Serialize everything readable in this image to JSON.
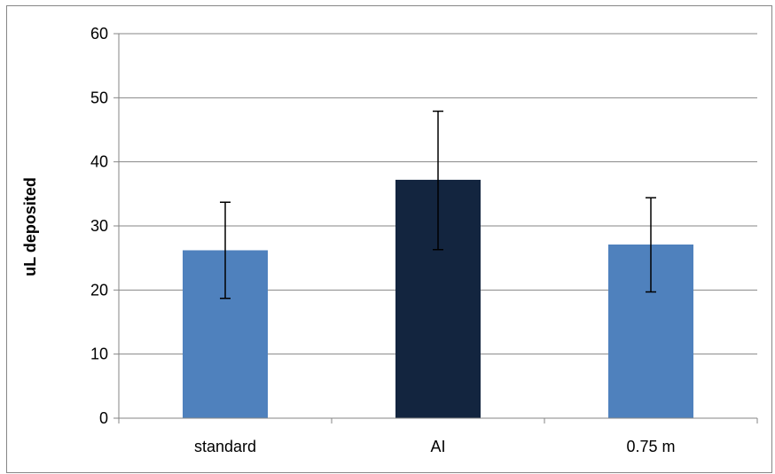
{
  "chart_data": {
    "type": "bar",
    "categories": [
      "standard",
      "AI",
      "0.75 m"
    ],
    "values": [
      26.2,
      37.2,
      27.1
    ],
    "error_bars": [
      {
        "low": 18.7,
        "high": 33.7
      },
      {
        "low": 26.3,
        "high": 47.9
      },
      {
        "low": 19.7,
        "high": 34.4
      }
    ],
    "bar_colors": [
      "#4F81BD",
      "#13253F",
      "#4F81BD"
    ],
    "title": "",
    "xlabel": "",
    "ylabel": "uL deposited",
    "ylim": [
      0,
      60
    ],
    "yticks": [
      "0",
      "10",
      "20",
      "30",
      "40",
      "50",
      "60"
    ],
    "grid": true,
    "legend": "none"
  }
}
